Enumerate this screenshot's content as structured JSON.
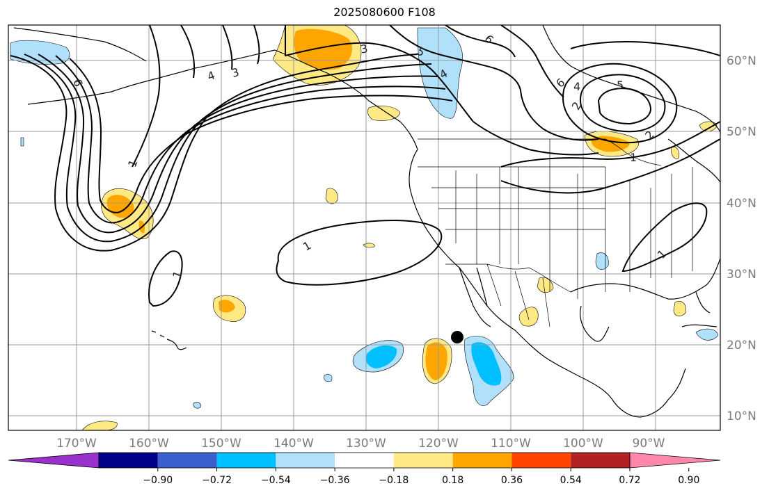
{
  "title": "2025080600 F108",
  "map": {
    "lon_labels": [
      "170°W",
      "160°W",
      "150°W",
      "140°W",
      "130°W",
      "120°W",
      "110°W",
      "100°W",
      "90°W"
    ],
    "lat_labels": [
      "60°N",
      "50°N",
      "40°N",
      "30°N",
      "20°N",
      "10°N"
    ],
    "contour_labels": [
      "6",
      "4",
      "3",
      "3",
      "5",
      "4",
      "6",
      "6",
      "4",
      "5",
      "2",
      "2",
      "1",
      "1",
      "1",
      "1",
      "1"
    ],
    "colors": {
      "land_coast": "#000000",
      "grid": "#9a9a9a",
      "tick_label": "#7a7a7a",
      "positive_light": "#ffe985",
      "positive_mid": "#ffa500",
      "positive_strong": "#ff4500",
      "negative_light": "#b0e0fa",
      "negative_mid": "#00bfff"
    }
  },
  "colorbar": {
    "colors": [
      "#9932cc",
      "#00008b",
      "#3a5fcd",
      "#00bfff",
      "#b0e0fa",
      "#ffffff",
      "#ffe985",
      "#ffa500",
      "#ff4500",
      "#b22222",
      "#ff88aa"
    ],
    "labels": [
      "−0.90",
      "−0.72",
      "−0.54",
      "−0.36",
      "−0.18",
      "0.18",
      "0.36",
      "0.54",
      "0.72",
      "0.90"
    ]
  }
}
